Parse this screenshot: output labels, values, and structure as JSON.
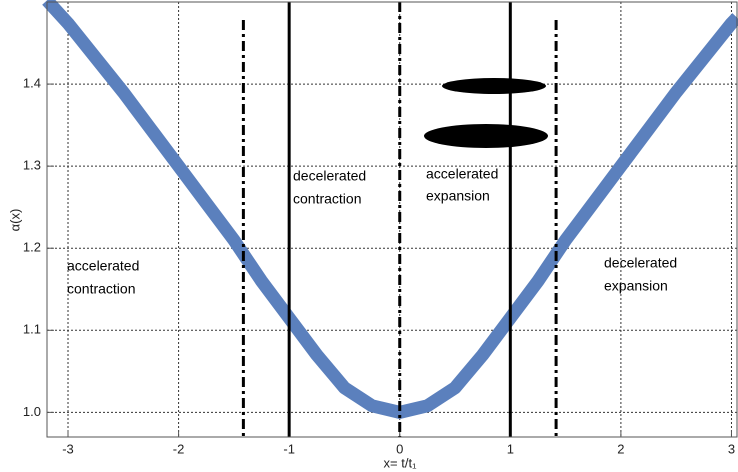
{
  "chart_data": {
    "type": "line",
    "x_label": "x= t/t₁",
    "y_label": "α(x)",
    "x": [
      -3.19,
      -3,
      -2.75,
      -2.5,
      -2.25,
      -2,
      -1.75,
      -1.5,
      -1.25,
      -1,
      -0.75,
      -0.5,
      -0.25,
      0,
      0.25,
      0.5,
      0.75,
      1,
      1.25,
      1.5,
      1.75,
      2,
      2.25,
      2.5,
      2.75,
      3,
      3.05
    ],
    "series": [
      {
        "color": "#5b80bd",
        "values": [
          1.502,
          1.474,
          1.432,
          1.39,
          1.345,
          1.3,
          1.255,
          1.21,
          1.16,
          1.115,
          1.07,
          1.03,
          1.008,
          1.0,
          1.008,
          1.03,
          1.07,
          1.115,
          1.16,
          1.21,
          1.255,
          1.3,
          1.345,
          1.39,
          1.432,
          1.474,
          1.481
        ]
      }
    ],
    "vlines": [
      {
        "x": -1.414,
        "style": "dashdot"
      },
      {
        "x": -1,
        "style": "solid"
      },
      {
        "x": 0,
        "style": "dashdot"
      },
      {
        "x": 1,
        "style": "solid"
      },
      {
        "x": 1.414,
        "style": "dashdot"
      }
    ],
    "annotations": [
      [
        "accelerated",
        "contraction"
      ],
      [
        "decelerated",
        "contraction"
      ],
      [
        "accelerated",
        "expansion"
      ],
      [
        "decelerated",
        "expansion"
      ]
    ],
    "xlim": [
      -3.19,
      3.05
    ],
    "ylim": [
      0.97,
      1.5
    ],
    "xticks": [
      -3,
      -2,
      -1,
      0,
      1,
      2,
      3
    ],
    "yticks": [
      {
        "value": 1,
        "label": "1.0"
      },
      1.1,
      1.2,
      1.3,
      1.4
    ],
    "grid": true
  }
}
